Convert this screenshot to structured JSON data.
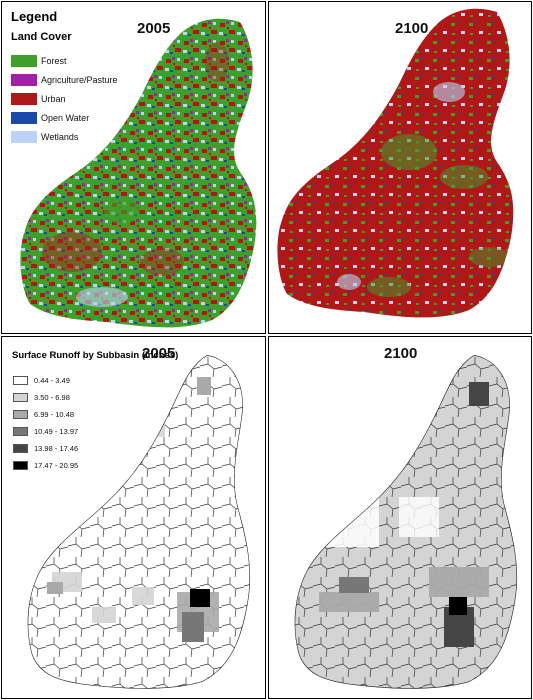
{
  "land_cover_2005": {
    "year": "2005",
    "legend_title": "Legend",
    "legend_subtitle": "Land Cover",
    "legend_items": [
      {
        "label": "Forest",
        "color": "#3ea02b"
      },
      {
        "label": "Agriculture/Pasture",
        "color": "#a21fa8"
      },
      {
        "label": "Urban",
        "color": "#b01818"
      },
      {
        "label": "Open Water",
        "color": "#1848a8"
      },
      {
        "label": "Wetlands",
        "color": "#bcd3f5"
      }
    ]
  },
  "land_cover_2100": {
    "year": "2100"
  },
  "runoff_2005": {
    "year": "2005",
    "legend_title": "Surface Runoff by Subbasin (inches)",
    "legend_items": [
      {
        "label": "0.44 - 3.49",
        "color": "#ffffff"
      },
      {
        "label": "3.50 - 6.98",
        "color": "#d4d4d4"
      },
      {
        "label": "6.99 - 10.48",
        "color": "#a9a9a9"
      },
      {
        "label": "10.49 - 13.97",
        "color": "#777777"
      },
      {
        "label": "13.98 - 17.46",
        "color": "#454545"
      },
      {
        "label": "17.47 - 20.95",
        "color": "#000000"
      }
    ]
  },
  "runoff_2100": {
    "year": "2100"
  }
}
